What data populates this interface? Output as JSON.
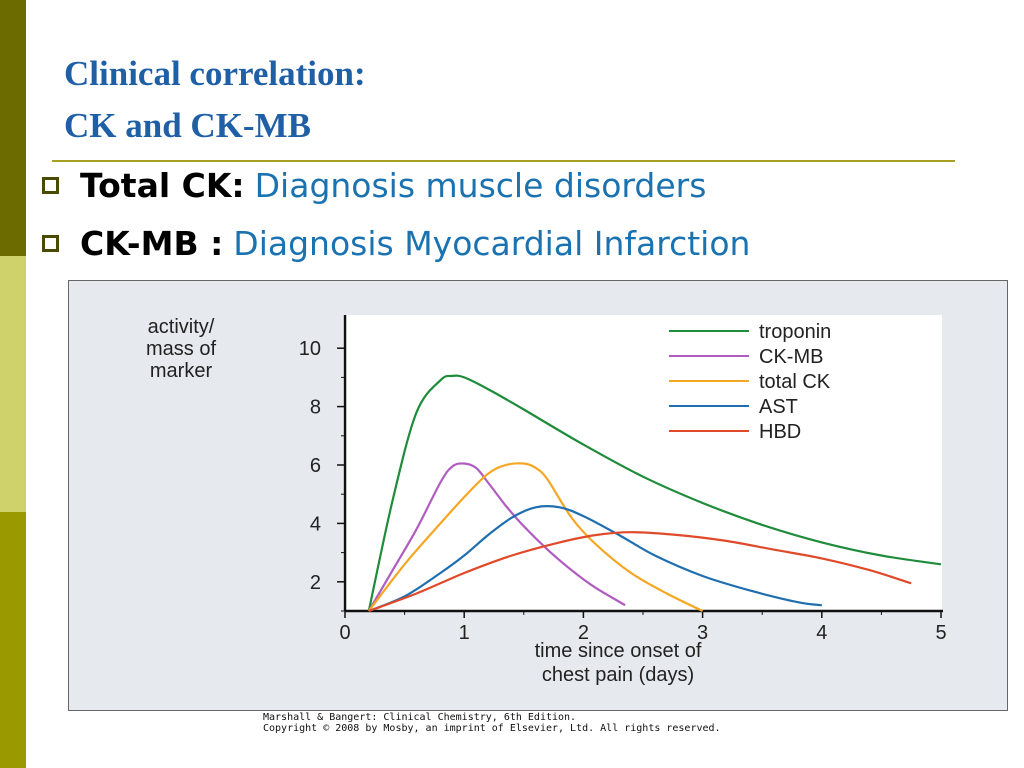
{
  "slide": {
    "title_line1": "Clinical correlation:",
    "title_line2": "CK and CK-MB",
    "bullets": [
      {
        "term": "Total CK:",
        "description": "Diagnosis muscle disorders"
      },
      {
        "term": "CK-MB :",
        "description": "Diagnosis Myocardial Infarction"
      }
    ],
    "credit_line1": "Marshall & Bangert: Clinical Chemistry, 6th Edition.",
    "credit_line2": "Copyright © 2008 by Mosby, an imprint of Elsevier, Ltd. All rights reserved.",
    "colors": {
      "title": "#1f5fa6",
      "description": "#1a73b0",
      "rule": "#a8a020",
      "sidebar_dark": "#6b6b00",
      "sidebar_light": "#cfd26a",
      "sidebar_mid": "#9a9a00"
    }
  },
  "chart_data": {
    "type": "line",
    "ylabel": "activity/\nmass of\nmarker",
    "xlabel": "time since onset of\nchest pain (days)",
    "xlim": [
      0,
      5
    ],
    "ylim": [
      1,
      11
    ],
    "xticks": [
      0,
      1,
      2,
      3,
      4,
      5
    ],
    "yticks": [
      2,
      4,
      6,
      8,
      10
    ],
    "grid": false,
    "legend_position": "top-right",
    "series": [
      {
        "name": "troponin",
        "color": "#1e8c3a",
        "x": [
          0.2,
          0.4,
          0.6,
          0.8,
          0.9,
          1.0,
          1.2,
          1.5,
          2.0,
          2.5,
          3.0,
          3.5,
          4.0,
          4.5,
          5.0
        ],
        "y": [
          1.0,
          4.8,
          7.8,
          8.9,
          9.05,
          9.0,
          8.6,
          7.9,
          6.7,
          5.6,
          4.7,
          3.95,
          3.35,
          2.9,
          2.6
        ]
      },
      {
        "name": "CK-MB",
        "color": "#b05cc0",
        "x": [
          0.2,
          0.4,
          0.6,
          0.8,
          0.9,
          1.0,
          1.1,
          1.2,
          1.35,
          1.5,
          1.7,
          1.9,
          2.1,
          2.35
        ],
        "y": [
          1.0,
          2.4,
          3.8,
          5.4,
          5.95,
          6.05,
          5.9,
          5.4,
          4.6,
          3.9,
          3.1,
          2.4,
          1.8,
          1.2
        ]
      },
      {
        "name": "total CK",
        "color": "#f5a623",
        "x": [
          0.2,
          0.5,
          0.8,
          1.0,
          1.2,
          1.35,
          1.5,
          1.6,
          1.7,
          1.9,
          2.1,
          2.4,
          2.7,
          3.0
        ],
        "y": [
          1.0,
          2.6,
          4.0,
          4.9,
          5.7,
          6.0,
          6.05,
          5.9,
          5.5,
          4.2,
          3.3,
          2.3,
          1.6,
          1.0
        ]
      },
      {
        "name": "AST",
        "color": "#1f6fb0",
        "x": [
          0.2,
          0.5,
          0.8,
          1.0,
          1.2,
          1.4,
          1.6,
          1.8,
          2.0,
          2.3,
          2.6,
          3.0,
          3.4,
          3.8,
          4.0
        ],
        "y": [
          1.0,
          1.5,
          2.3,
          2.9,
          3.6,
          4.2,
          4.55,
          4.55,
          4.25,
          3.6,
          2.9,
          2.2,
          1.7,
          1.3,
          1.2
        ]
      },
      {
        "name": "HBD",
        "color": "#e04a2a",
        "x": [
          0.2,
          0.6,
          1.0,
          1.4,
          1.8,
          2.1,
          2.4,
          2.8,
          3.2,
          3.6,
          4.0,
          4.4,
          4.75
        ],
        "y": [
          1.0,
          1.6,
          2.3,
          2.9,
          3.35,
          3.6,
          3.7,
          3.6,
          3.4,
          3.1,
          2.8,
          2.4,
          1.95
        ]
      }
    ]
  }
}
